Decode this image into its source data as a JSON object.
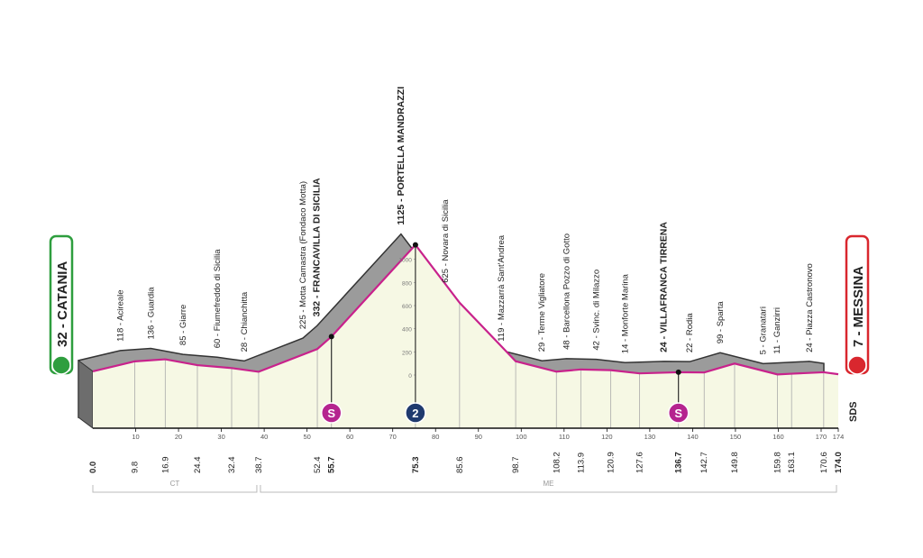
{
  "chart_data": {
    "type": "area",
    "x": [
      0,
      9.8,
      16.9,
      24.4,
      32.4,
      38.7,
      52.4,
      55.7,
      75.3,
      85.6,
      98.7,
      108.2,
      113.9,
      120.9,
      127.6,
      136.7,
      142.7,
      149.8,
      159.8,
      163.1,
      170.6,
      174
    ],
    "x_labels": [
      "0.0",
      "9.8",
      "16.9",
      "24.4",
      "32.4",
      "38.7",
      "52.4",
      "55.7",
      "75.3",
      "85.6",
      "98.7",
      "108.2",
      "113.9",
      "120.9",
      "127.6",
      "136.7",
      "142.7",
      "149.8",
      "159.8",
      "163.1",
      "170.6",
      "174.0"
    ],
    "values": [
      32,
      118,
      136,
      85,
      60,
      28,
      225,
      332,
      1125,
      625,
      119,
      29,
      48,
      42,
      14,
      24,
      22,
      99,
      5,
      11,
      24,
      7
    ],
    "point_labels": [
      "32 - CATANIA",
      "118 - Acireale",
      "136 - Guardia",
      "85 - Giarre",
      "60 - Fiumefreddo di Sicilia",
      "28 - Chianchitta",
      "225 - Motta Camastra (Fondaco Motta)",
      "332 - FRANCAVILLA DI SICILIA",
      "1125 - PORTELLA MANDRAZZI",
      "625 - Novara di Sicilia",
      "119 - Mazzarrà  Sant'Andrea",
      "29 - Terme Vigliatore",
      "48 - Barcellona Pozzo di Gotto",
      "42 - Svinc. di Milazzo",
      "14 - Monforte Marina",
      "24 - VILLAFRANCA TIRRENA",
      "22 - Rodia",
      "99 - Sparta",
      "5 - Granatari",
      "11 - Ganzirri",
      "24 - Piazza Castronovo",
      "7 - MESSINA"
    ],
    "line_color": "#c8228c",
    "fill_color": "#f6f8e4",
    "shadow_color": "#9b9b9b",
    "xlim": [
      0,
      174
    ],
    "xticks": [
      10,
      20,
      30,
      40,
      50,
      60,
      70,
      80,
      90,
      100,
      110,
      120,
      130,
      140,
      150,
      160,
      170,
      174
    ],
    "ylim": [
      0,
      1200
    ],
    "yticks": [
      0,
      200,
      400,
      600,
      800,
      1000
    ],
    "markers": [
      {
        "km": 55.7,
        "label": "S",
        "color": "#b5248f"
      },
      {
        "km": 75.3,
        "label": "2",
        "color": "#1f3a6e"
      },
      {
        "km": 136.7,
        "label": "S",
        "color": "#b5248f"
      }
    ],
    "regions": [
      {
        "label": "CT",
        "from": 0,
        "to": 38.7
      },
      {
        "label": "ME",
        "from": 38.7,
        "to": 174
      }
    ],
    "logo_text": "SDS"
  }
}
